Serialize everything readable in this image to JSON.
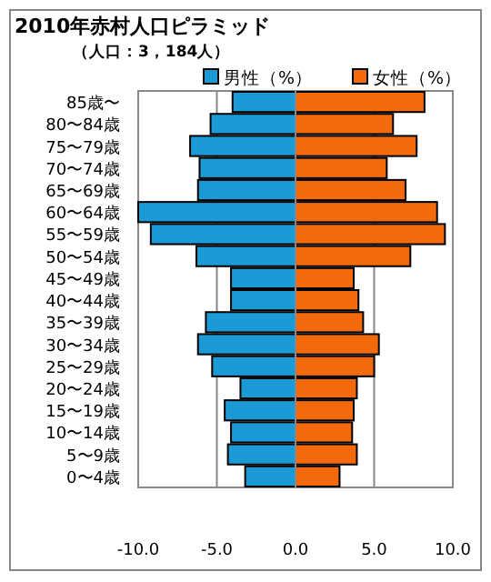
{
  "chart_data": {
    "type": "bar",
    "orientation": "horizontal",
    "stacked": true,
    "title": "2010年赤村人口ピラミッド",
    "subtitle": "（人口：3，184人）",
    "categories": [
      "85歳〜",
      "80〜84歳",
      "75〜79歳",
      "70〜74歳",
      "65〜69歳",
      "60〜64歳",
      "55〜59歳",
      "50〜54歳",
      "45〜49歳",
      "40〜44歳",
      "35〜39歳",
      "30〜34歳",
      "25〜29歳",
      "20〜24歳",
      "15〜19歳",
      "10〜14歳",
      "5〜9歳",
      "0〜4歳"
    ],
    "series": [
      {
        "name": "男性（%）",
        "color": "#1c9ad6",
        "values": [
          -4.0,
          -5.4,
          -6.7,
          -6.1,
          -6.2,
          -10.0,
          -9.2,
          -6.3,
          -4.1,
          -4.1,
          -5.7,
          -6.2,
          -5.3,
          -3.5,
          -4.5,
          -4.1,
          -4.3,
          -3.2
        ]
      },
      {
        "name": "女性（%）",
        "color": "#f26a0c",
        "values": [
          8.2,
          6.2,
          7.7,
          5.8,
          7.0,
          9.0,
          9.5,
          7.3,
          3.7,
          4.0,
          4.3,
          5.3,
          5.0,
          3.9,
          3.7,
          3.6,
          3.9,
          2.8
        ]
      }
    ],
    "xlim": [
      -10,
      10
    ],
    "xticks": [
      {
        "value": -10,
        "label": "-10.0"
      },
      {
        "value": -5,
        "label": "-5.0"
      },
      {
        "value": 0,
        "label": "0.0"
      },
      {
        "value": 5,
        "label": "5.0"
      },
      {
        "value": 10,
        "label": "10.0"
      }
    ],
    "grid": "x",
    "legend": "top right"
  }
}
